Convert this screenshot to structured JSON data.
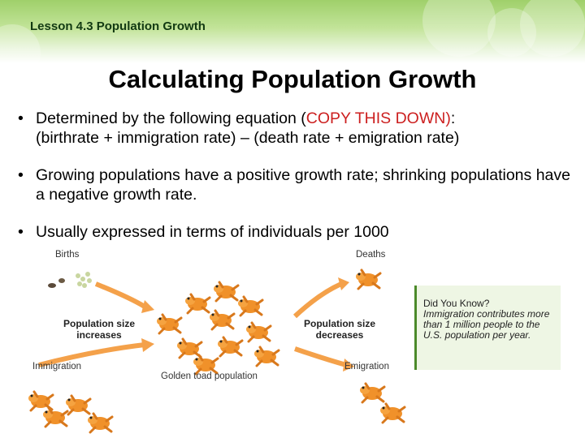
{
  "header": {
    "lesson": "Lesson 4.3 Population Growth"
  },
  "slide": {
    "title": "Calculating Population Growth",
    "bullets": [
      {
        "pre": "Determined by the following equation (",
        "highlight": "COPY THIS DOWN)",
        "post": ":",
        "line2": "(birthrate + immigration rate) – (death rate + emigration rate)"
      },
      {
        "text": "Growing populations have a positive growth rate; shrinking populations have a negative growth rate."
      },
      {
        "text": "Usually expressed in terms of individuals per 1000"
      }
    ]
  },
  "figure": {
    "births": "Births",
    "deaths": "Deaths",
    "increases_1": "Population size",
    "increases_2": "increases",
    "decreases_1": "Population size",
    "decreases_2": "decreases",
    "immigration": "Immigration",
    "emigration": "Emigration",
    "caption": "Golden toad population"
  },
  "callout": {
    "heading": "Did You Know?",
    "body": "Immigration contributes more than 1 million people to the U.S. population per year."
  },
  "colors": {
    "accent_green": "#9fd06a",
    "highlight_red": "#cc1f1f",
    "toad_orange": "#f0912a",
    "arrow_orange": "#f4a14a"
  }
}
